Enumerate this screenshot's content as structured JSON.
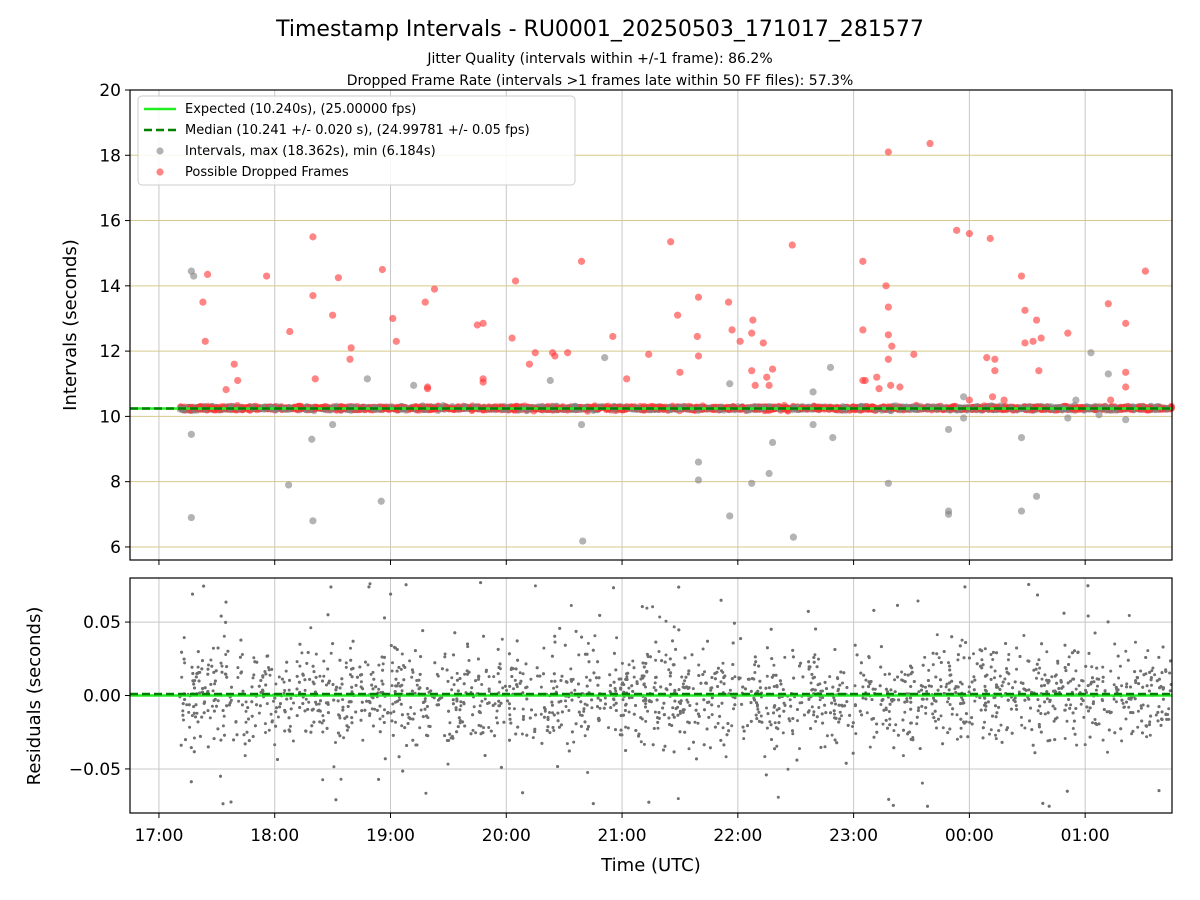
{
  "chart_data": {
    "type": "scatter",
    "title": "Timestamp Intervals - RU0001_20250503_171017_281577",
    "subtitle_lines": [
      "Jitter Quality (intervals within +/-1 frame): 86.2%",
      "Dropped Frame Rate (intervals >1 frames late within 50 FF files): 57.3%"
    ],
    "xlabel": "Time (UTC)",
    "x_tick_labels": [
      "17:00",
      "18:00",
      "19:00",
      "20:00",
      "21:00",
      "22:00",
      "23:00",
      "00:00",
      "01:00"
    ],
    "x_tick_hours_from_1700": [
      0,
      1,
      2,
      3,
      4,
      5,
      6,
      7,
      8
    ],
    "xlim_hours_from_1700": [
      -0.25,
      8.75
    ],
    "data_x_range_hours_from_1700": [
      0.18,
      8.75
    ],
    "upper_panel": {
      "ylabel": "Intervals (seconds)",
      "ylim": [
        5.6,
        20
      ],
      "y_ticks": [
        6,
        8,
        10,
        12,
        14,
        16,
        18,
        20
      ],
      "grid": true,
      "legend_position": "upper-left",
      "legend": [
        {
          "label": "Expected (10.240s), (25.00000 fps)",
          "color": "#22ee22",
          "style": "solid-line"
        },
        {
          "label": "Median (10.241 +/- 0.020 s), (24.99781 +/- 0.05 fps)",
          "color": "#008000",
          "style": "dashed-line"
        },
        {
          "label": "Intervals, max (18.362s), min (6.184s)",
          "color": "#808080",
          "style": "marker"
        },
        {
          "label": "Possible Dropped Frames",
          "color": "#ff3333",
          "style": "marker"
        }
      ],
      "expected_value": 10.24,
      "median_value": 10.241,
      "baseline_band": {
        "center": 10.25,
        "spread": 0.05,
        "approx_points": 3000
      },
      "dropped_frames_outliers": [
        [
          0.42,
          14.35
        ],
        [
          0.38,
          13.5
        ],
        [
          0.4,
          12.3
        ],
        [
          0.58,
          10.82
        ],
        [
          0.65,
          11.6
        ],
        [
          0.68,
          11.1
        ],
        [
          0.93,
          14.3
        ],
        [
          1.13,
          12.6
        ],
        [
          1.33,
          15.5
        ],
        [
          1.33,
          13.7
        ],
        [
          1.35,
          11.15
        ],
        [
          1.5,
          13.1
        ],
        [
          1.55,
          14.25
        ],
        [
          1.65,
          11.75
        ],
        [
          1.66,
          12.1
        ],
        [
          1.93,
          14.5
        ],
        [
          2.02,
          13.0
        ],
        [
          2.05,
          12.3
        ],
        [
          2.3,
          13.5
        ],
        [
          2.32,
          10.9
        ],
        [
          2.32,
          10.85
        ],
        [
          2.38,
          13.9
        ],
        [
          2.75,
          12.8
        ],
        [
          2.8,
          12.85
        ],
        [
          2.8,
          11.15
        ],
        [
          2.8,
          11.05
        ],
        [
          3.05,
          12.4
        ],
        [
          3.08,
          14.15
        ],
        [
          3.2,
          11.6
        ],
        [
          3.25,
          11.95
        ],
        [
          3.4,
          11.95
        ],
        [
          3.42,
          11.85
        ],
        [
          3.53,
          11.95
        ],
        [
          3.65,
          14.75
        ],
        [
          3.92,
          12.45
        ],
        [
          4.04,
          11.15
        ],
        [
          4.23,
          11.9
        ],
        [
          4.42,
          15.35
        ],
        [
          4.48,
          13.1
        ],
        [
          4.5,
          11.35
        ],
        [
          4.65,
          12.45
        ],
        [
          4.66,
          13.65
        ],
        [
          4.66,
          11.85
        ],
        [
          4.92,
          13.5
        ],
        [
          4.95,
          12.65
        ],
        [
          5.02,
          12.3
        ],
        [
          5.12,
          12.55
        ],
        [
          5.13,
          12.95
        ],
        [
          5.12,
          11.4
        ],
        [
          5.15,
          10.95
        ],
        [
          5.22,
          12.25
        ],
        [
          5.25,
          11.2
        ],
        [
          5.27,
          10.95
        ],
        [
          5.3,
          11.45
        ],
        [
          5.47,
          15.25
        ],
        [
          6.08,
          14.75
        ],
        [
          6.08,
          12.65
        ],
        [
          6.08,
          11.1
        ],
        [
          6.1,
          11.1
        ],
        [
          6.2,
          11.2
        ],
        [
          6.22,
          10.85
        ],
        [
          6.28,
          14.0
        ],
        [
          6.3,
          13.35
        ],
        [
          6.3,
          12.5
        ],
        [
          6.3,
          11.75
        ],
        [
          6.32,
          10.95
        ],
        [
          6.3,
          18.1
        ],
        [
          6.33,
          12.15
        ],
        [
          6.4,
          10.9
        ],
        [
          6.52,
          11.9
        ],
        [
          6.66,
          18.36
        ],
        [
          6.89,
          15.7
        ],
        [
          7.0,
          15.6
        ],
        [
          7.0,
          10.5
        ],
        [
          7.15,
          11.8
        ],
        [
          7.18,
          15.45
        ],
        [
          7.22,
          11.75
        ],
        [
          7.22,
          11.4
        ],
        [
          7.2,
          10.6
        ],
        [
          7.3,
          10.5
        ],
        [
          7.45,
          14.3
        ],
        [
          7.48,
          13.25
        ],
        [
          7.48,
          12.25
        ],
        [
          7.55,
          12.3
        ],
        [
          7.58,
          12.95
        ],
        [
          7.6,
          11.4
        ],
        [
          7.62,
          12.4
        ],
        [
          7.85,
          12.55
        ],
        [
          8.2,
          13.45
        ],
        [
          8.22,
          10.5
        ],
        [
          8.35,
          12.85
        ],
        [
          8.35,
          11.35
        ],
        [
          8.35,
          10.9
        ],
        [
          8.52,
          14.45
        ]
      ],
      "intervals_outliers": [
        [
          0.28,
          14.45
        ],
        [
          0.3,
          14.3
        ],
        [
          0.28,
          9.45
        ],
        [
          0.28,
          6.9
        ],
        [
          1.12,
          7.9
        ],
        [
          1.32,
          9.3
        ],
        [
          1.33,
          6.8
        ],
        [
          1.5,
          9.75
        ],
        [
          1.8,
          11.15
        ],
        [
          1.92,
          7.4
        ],
        [
          2.2,
          10.95
        ],
        [
          3.38,
          11.1
        ],
        [
          3.65,
          9.75
        ],
        [
          3.66,
          6.18
        ],
        [
          3.85,
          11.8
        ],
        [
          4.66,
          8.6
        ],
        [
          4.66,
          8.05
        ],
        [
          4.93,
          6.95
        ],
        [
          4.93,
          11.0
        ],
        [
          5.12,
          7.95
        ],
        [
          5.27,
          8.25
        ],
        [
          5.3,
          9.2
        ],
        [
          5.48,
          6.3
        ],
        [
          5.65,
          9.75
        ],
        [
          5.65,
          10.75
        ],
        [
          5.8,
          11.5
        ],
        [
          5.82,
          9.35
        ],
        [
          6.3,
          7.95
        ],
        [
          6.82,
          9.6
        ],
        [
          6.82,
          7.1
        ],
        [
          6.82,
          7.0
        ],
        [
          6.95,
          10.6
        ],
        [
          6.95,
          9.95
        ],
        [
          7.45,
          9.35
        ],
        [
          7.45,
          7.1
        ],
        [
          7.58,
          7.55
        ],
        [
          7.85,
          9.95
        ],
        [
          7.92,
          10.5
        ],
        [
          8.05,
          11.95
        ],
        [
          8.12,
          10.05
        ],
        [
          8.2,
          11.3
        ],
        [
          8.35,
          9.9
        ]
      ]
    },
    "lower_panel": {
      "ylabel": "Residuals (seconds)",
      "ylim": [
        -0.08,
        0.08
      ],
      "y_ticks": [
        -0.05,
        0.0,
        0.05
      ],
      "y_tick_labels": [
        "−0.05",
        "0.00",
        "0.05"
      ],
      "grid": true,
      "expected_residual": 0.0,
      "median_residual": 0.001,
      "residual_points": {
        "approx_count": 3000,
        "spread": 0.03,
        "x_range_hours_from_1700": [
          0.18,
          8.75
        ]
      }
    },
    "colors": {
      "expected_line": "#22ee22",
      "median_line": "#008000",
      "intervals": "#808080",
      "dropped": "#ff3333",
      "residuals": "#707070",
      "grid": "#c8c8c8",
      "hgrid_upper": "#d6c98a"
    }
  }
}
